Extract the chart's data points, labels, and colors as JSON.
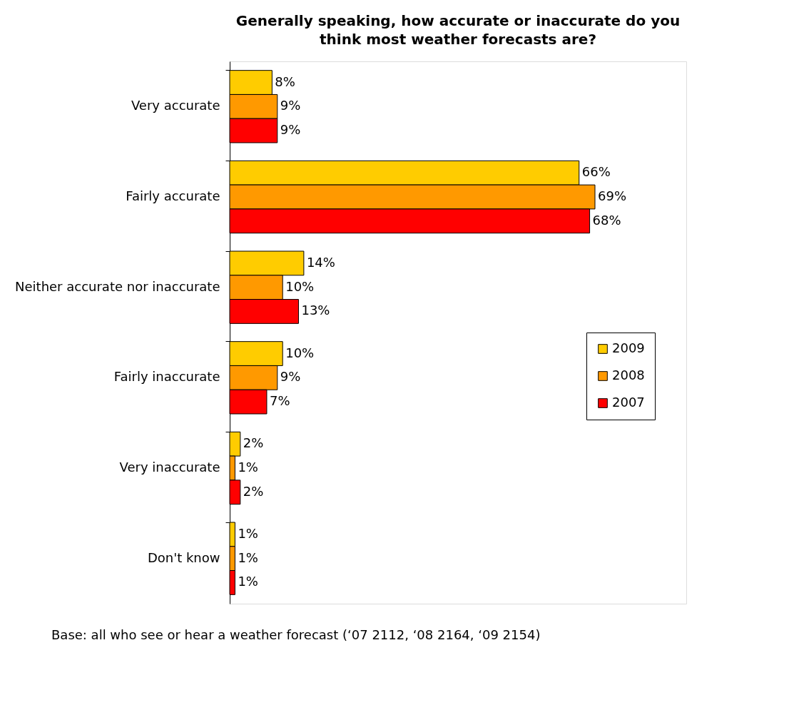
{
  "chart_data": {
    "type": "bar",
    "orientation": "horizontal",
    "title": "Generally speaking, how accurate or inaccurate do you think most weather forecasts are?",
    "categories": [
      "Very accurate",
      "Fairly accurate",
      "Neither accurate nor inaccurate",
      "Fairly inaccurate",
      "Very inaccurate",
      "Don't know"
    ],
    "series": [
      {
        "name": "2009",
        "color": "#ffcc00",
        "values": [
          8,
          66,
          14,
          10,
          2,
          1
        ],
        "value_labels": [
          "8%",
          "66%",
          "14%",
          "10%",
          "2%",
          "1%"
        ]
      },
      {
        "name": "2008",
        "color": "#ff9900",
        "values": [
          9,
          69,
          10,
          9,
          1,
          1
        ],
        "value_labels": [
          "9%",
          "69%",
          "10%",
          "9%",
          "1%",
          "1%"
        ]
      },
      {
        "name": "2007",
        "color": "#ff0000",
        "values": [
          9,
          68,
          13,
          7,
          2,
          1
        ],
        "value_labels": [
          "9%",
          "68%",
          "13%",
          "7%",
          "2%",
          "1%"
        ]
      }
    ],
    "legend": "right",
    "grid": false,
    "annotations": [
      "Base: all who see or hear a weather forecast (‘07 2112, ‘08 2164, ‘09 2154)"
    ]
  }
}
